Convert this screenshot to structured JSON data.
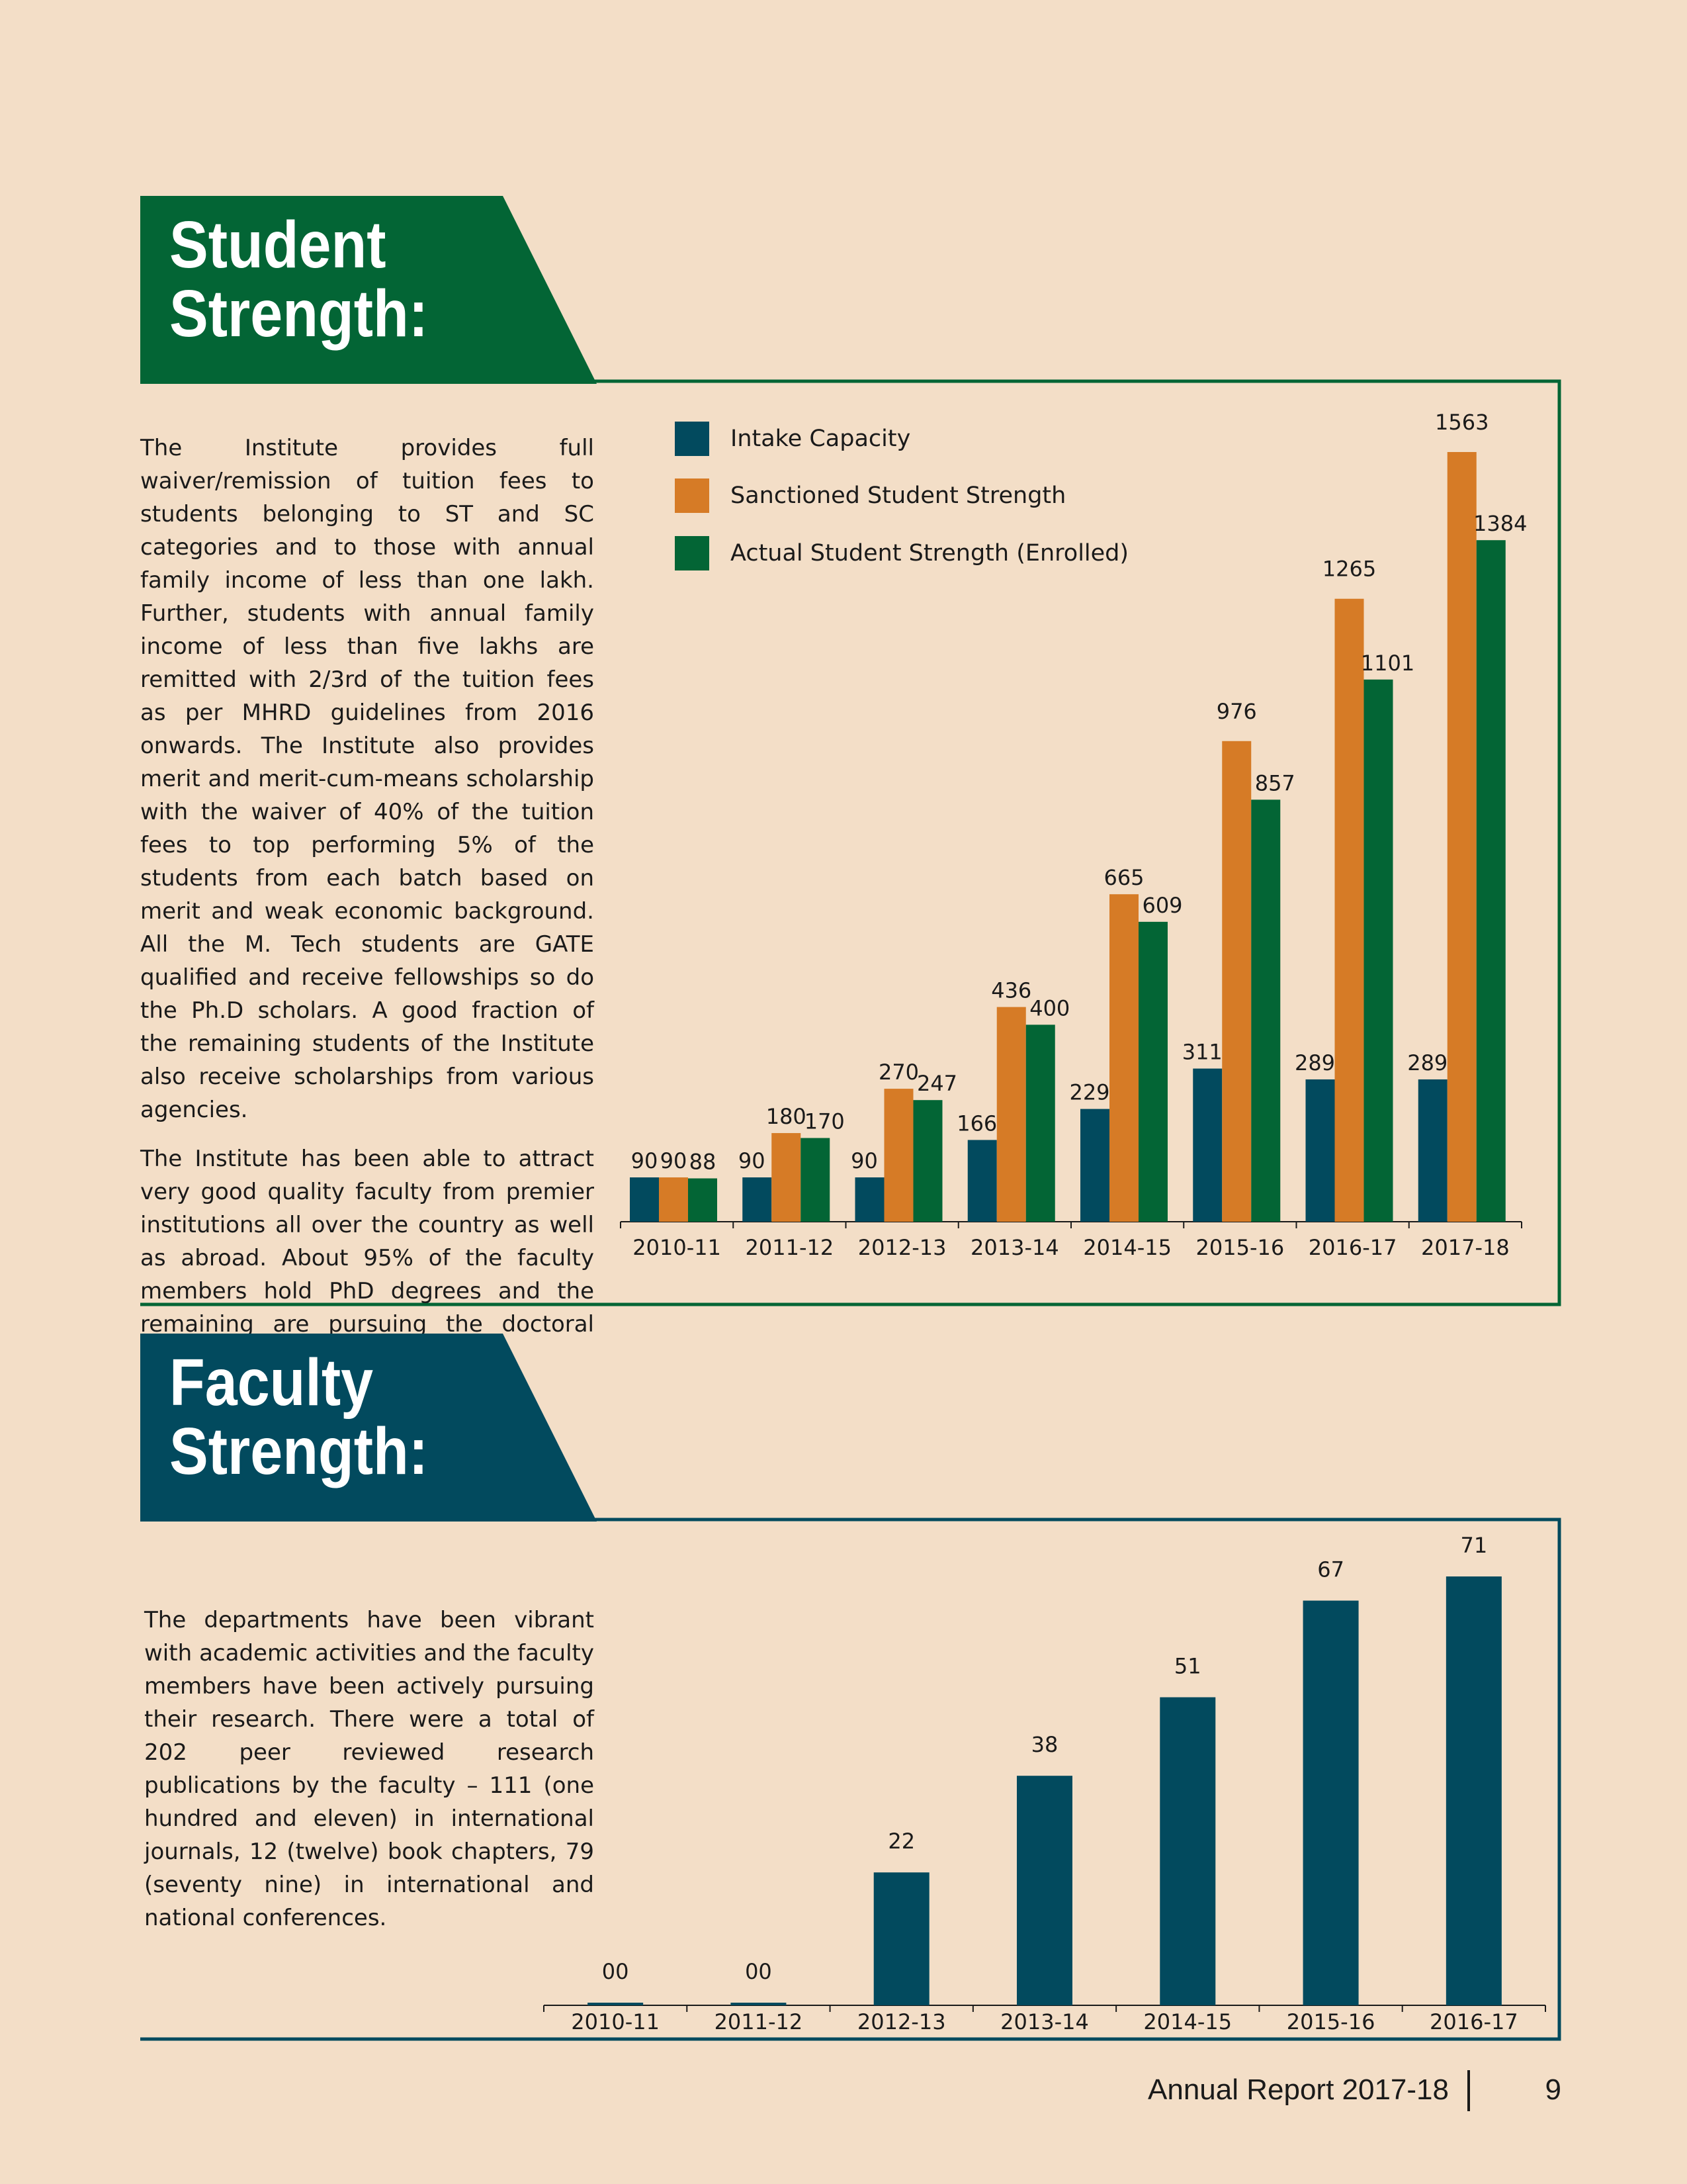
{
  "student_section": {
    "title": "Student\nStrength:",
    "paragraphs": [
      "The Institute provides full waiver/remission of tuition fees to students belonging to ST and SC categories and to those with annual family income of less than one lakh. Further, students with annual family income of less than five lakhs are remitted with 2/3rd of the tuition fees as per MHRD guidelines from 2016 onwards. The Institute also provides merit and merit-cum-means scholarship with the waiver of 40% of the tuition fees to top performing 5% of the students from each batch based on merit and weak economic background. All the M. Tech students are GATE qualified and receive fellowships so do the Ph.D scholars. A good fraction of the remaining students of the Institute also receive scholarships from various agencies.",
      "The Institute has been able to attract very good quality faculty from premier institutions all over the country as well as abroad. About 95% of the faculty members hold PhD degrees and the remaining are pursuing the doctoral studies."
    ]
  },
  "faculty_section": {
    "title": "Faculty\nStrength:",
    "paragraph": "The departments have been vibrant with academic activities and the faculty members have been actively pursuing their research. There were a total of 202 peer reviewed research publications by the faculty – 111 (one hundred and eleven) in international journals, 12 (twelve) book chapters, 79 (seventy nine) in international and national conferences."
  },
  "colors": {
    "background": "#f3dec7",
    "green": "#036535",
    "navy": "#024a5e",
    "orange": "#d67b26"
  },
  "chart_data": [
    {
      "type": "bar",
      "categories": [
        "2010-11",
        "2011-12",
        "2012-13",
        "2013-14",
        "2014-15",
        "2015-16",
        "2016-17",
        "2017-18"
      ],
      "series": [
        {
          "name": "Intake Capacity",
          "color": "#024a5e",
          "values": [
            90,
            90,
            90,
            166,
            229,
            311,
            289,
            289
          ],
          "labels": [
            "90",
            "90",
            "90",
            "166",
            "229",
            "311",
            "289",
            "289"
          ]
        },
        {
          "name": "Sanctioned Student Strength",
          "color": "#d67b26",
          "values": [
            90,
            180,
            270,
            436,
            665,
            976,
            1265,
            1563
          ],
          "labels": [
            "90",
            "180",
            "270",
            "436",
            "665",
            "976",
            "1265",
            "1563"
          ]
        },
        {
          "name": "Actual Student Strength (Enrolled)",
          "color": "#036535",
          "values": [
            88,
            170,
            247,
            400,
            609,
            857,
            1101,
            1384
          ],
          "labels": [
            "88",
            "170",
            "247",
            "400",
            "609",
            "857",
            "1101",
            "1384"
          ]
        }
      ],
      "legend": "top-left",
      "grid": false
    },
    {
      "type": "bar",
      "categories": [
        "2010-11",
        "2011-12",
        "2012-13",
        "2013-14",
        "2014-15",
        "2015-16",
        "2016-17"
      ],
      "series": [
        {
          "color": "#024a5e",
          "values": [
            0,
            0,
            22,
            38,
            51,
            67,
            71
          ],
          "labels": [
            "00",
            "00",
            "22",
            "38",
            "51",
            "67",
            "71"
          ]
        }
      ],
      "grid": false
    }
  ],
  "footer": {
    "report_title": "Annual Report 2017-18",
    "page_number": "9"
  }
}
